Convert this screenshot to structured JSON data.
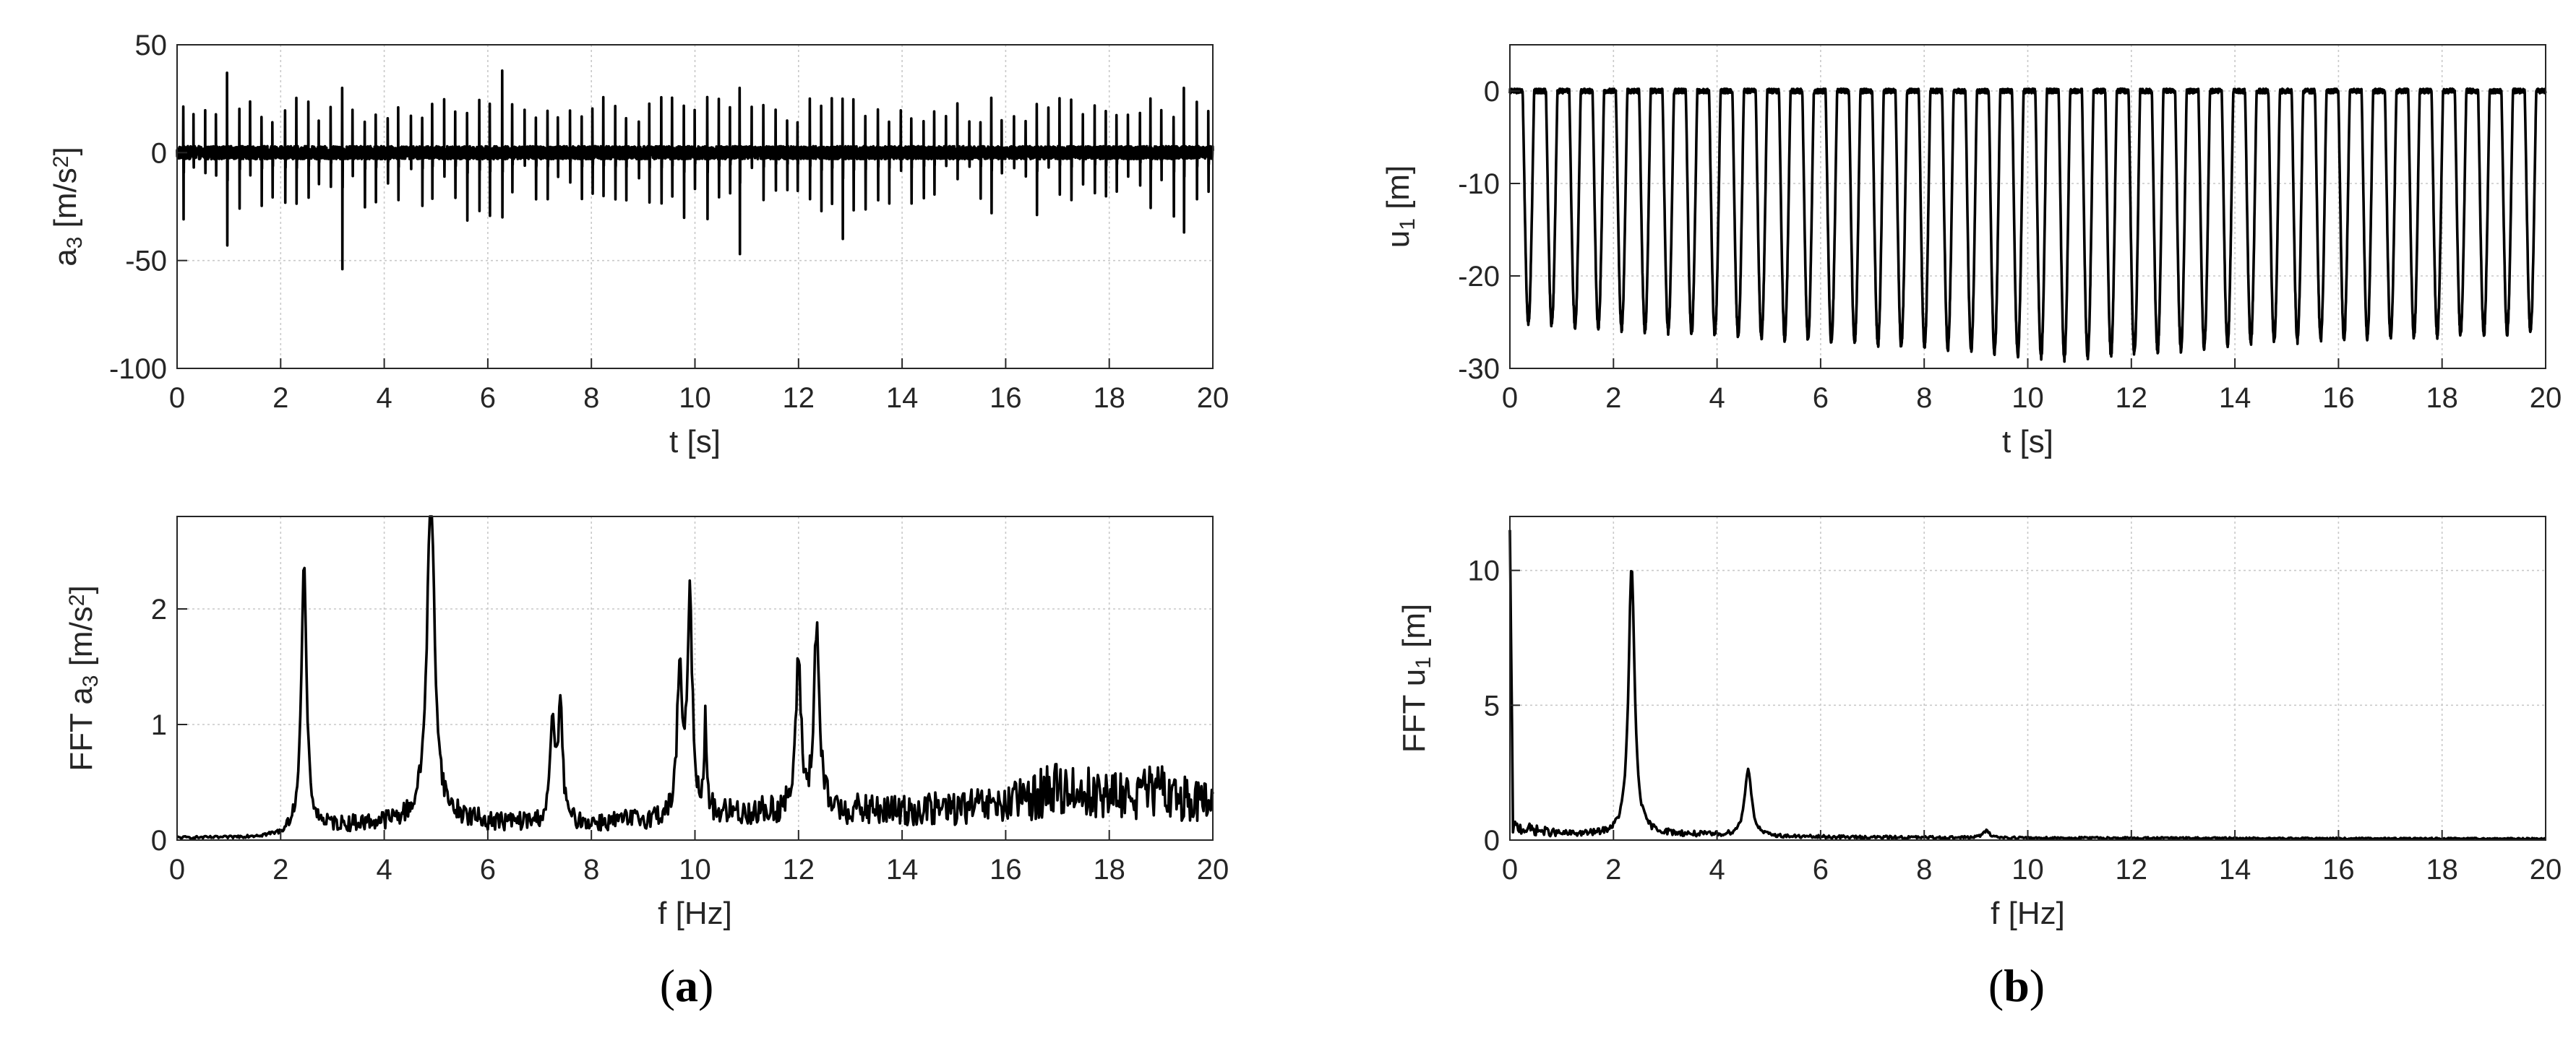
{
  "colors": {
    "line": "#000000",
    "grid": "#c9c9c9",
    "axis": "#262626",
    "background": "#ffffff"
  },
  "captions": {
    "a": "a",
    "b": "b"
  },
  "chart_data": [
    {
      "id": "a3-time",
      "type": "line",
      "xlabel": "t [s]",
      "ylabel": "a3 [m/s2]",
      "ylabel_parts": {
        "main": "a",
        "sub": "3",
        "unit_pre": " [m/s",
        "sup": "2",
        "unit_post": "]"
      },
      "xlim": [
        0,
        20
      ],
      "ylim": [
        -100,
        50
      ],
      "xticks": [
        0,
        2,
        4,
        6,
        8,
        10,
        12,
        14,
        16,
        18,
        20
      ],
      "yticks": [
        -100,
        -50,
        0,
        50
      ],
      "grid": true,
      "series": [
        {
          "signal": "impulses",
          "period_s": 0.22,
          "baseline_noise": 3,
          "x": [
            0.95,
            3.1,
            6.35,
            10.9,
            12.95,
            19.4
          ],
          "peak_max": [
            37,
            30,
            38,
            30,
            25,
            30
          ],
          "peak_min": [
            -43,
            -54,
            -30,
            -47,
            -40,
            -37
          ]
        }
      ]
    },
    {
      "id": "u1-time",
      "type": "line",
      "xlabel": "t [s]",
      "ylabel": "u1 [m]",
      "ylabel_parts": {
        "main": "u",
        "sub": "1",
        "unit_pre": " [m]",
        "sup": "",
        "unit_post": ""
      },
      "xlim": [
        0,
        20
      ],
      "ylim": [
        -30,
        5
      ],
      "xticks": [
        0,
        2,
        4,
        6,
        8,
        10,
        12,
        14,
        16,
        18,
        20
      ],
      "yticks": [
        -30,
        -20,
        -10,
        0
      ],
      "grid": true,
      "series": [
        {
          "signal": "periodic",
          "period_s": 0.45,
          "max": 0,
          "min_values": [
            -25,
            -26,
            -27,
            -28,
            -29,
            -27,
            -26
          ],
          "min_at_t": [
            0,
            3,
            6,
            9,
            10.5,
            15,
            20
          ]
        }
      ]
    },
    {
      "id": "a3-fft",
      "type": "line",
      "xlabel": "f [Hz]",
      "ylabel": "FFT a3 [m/s2]",
      "ylabel_parts": {
        "main": "FFT a",
        "sub": "3",
        "unit_pre": " [m/s",
        "sup": "2",
        "unit_post": "]"
      },
      "xlim": [
        0,
        20
      ],
      "ylim": [
        0,
        2.8
      ],
      "xticks": [
        0,
        2,
        4,
        6,
        8,
        10,
        12,
        14,
        16,
        18,
        20
      ],
      "yticks": [
        0,
        1,
        2
      ],
      "grid": true,
      "series": [
        {
          "signal": "spectrum",
          "peaks_x": [
            2.45,
            4.9,
            7.25,
            7.4,
            9.7,
            9.9,
            10.2,
            12.0,
            12.35
          ],
          "peaks_y": [
            2.25,
            2.8,
            0.88,
            1.03,
            1.25,
            1.86,
            0.75,
            1.28,
            1.6
          ],
          "peaks_w": [
            0.06,
            0.09,
            0.05,
            0.05,
            0.05,
            0.06,
            0.03,
            0.06,
            0.06
          ],
          "floor_x": [
            0,
            1,
            2,
            2.3,
            3,
            4,
            5.5,
            6,
            8,
            10.5,
            12,
            14,
            16,
            17,
            18,
            19,
            20
          ],
          "floor_y": [
            0.02,
            0.02,
            0.04,
            0.1,
            0.12,
            0.15,
            0.18,
            0.15,
            0.14,
            0.22,
            0.25,
            0.25,
            0.3,
            0.45,
            0.38,
            0.42,
            0.3
          ]
        }
      ]
    },
    {
      "id": "u1-fft",
      "type": "line",
      "xlabel": "f [Hz]",
      "ylabel": "FFT u1 [m]",
      "ylabel_parts": {
        "main": "FFT u",
        "sub": "1",
        "unit_pre": " [m]",
        "sup": "",
        "unit_post": ""
      },
      "xlim": [
        0,
        20
      ],
      "ylim": [
        0,
        12
      ],
      "xticks": [
        0,
        2,
        4,
        6,
        8,
        10,
        12,
        14,
        16,
        18,
        20
      ],
      "yticks": [
        0,
        5,
        10
      ],
      "grid": true,
      "series": [
        {
          "signal": "spectrum",
          "dc_value": 11.5,
          "peaks_x": [
            2.35,
            4.6,
            9.2
          ],
          "peaks_y": [
            9.9,
            2.5,
            0.25
          ],
          "peaks_w": [
            0.07,
            0.08,
            0.08
          ],
          "floor_x": [
            0,
            0.5,
            1,
            2,
            3,
            5,
            7,
            10,
            15,
            20
          ],
          "floor_y": [
            0.5,
            0.35,
            0.22,
            0.2,
            0.22,
            0.12,
            0.1,
            0.08,
            0.06,
            0.05
          ]
        }
      ]
    }
  ]
}
